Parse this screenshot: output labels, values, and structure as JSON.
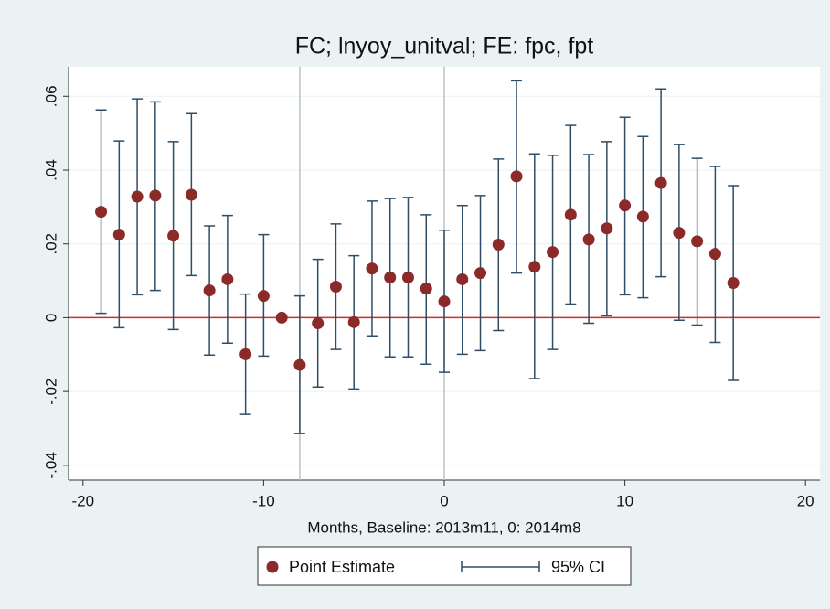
{
  "chart_data": {
    "type": "errorbar",
    "title": "FC; lnyoy_unitval; FE: fpc, fpt",
    "x_label": "Months, Baseline: 2013m11, 0: 2014m8",
    "x": [
      -19,
      -18,
      -17,
      -16,
      -15,
      -14,
      -13,
      -12,
      -11,
      -10,
      -9,
      -8,
      -7,
      -6,
      -5,
      -4,
      -3,
      -2,
      -1,
      0,
      1,
      2,
      3,
      4,
      5,
      6,
      7,
      8,
      9,
      10,
      11,
      12,
      13,
      14,
      15,
      16
    ],
    "series": [
      {
        "name": "Point Estimate",
        "color": "#8c2a2a",
        "values": [
          0.0287,
          0.0225,
          0.0328,
          0.0331,
          0.0222,
          0.0333,
          0.0074,
          0.0104,
          -0.0099,
          0.0059,
          0,
          -0.0128,
          -0.0015,
          0.0084,
          -0.0012,
          0.0133,
          0.0109,
          0.0109,
          0.0079,
          0.0044,
          0.0104,
          0.0121,
          0.0198,
          0.0383,
          0.0138,
          0.0178,
          0.0279,
          0.0212,
          0.0242,
          0.0304,
          0.0274,
          0.0365,
          0.023,
          0.0207,
          0.0173,
          0.0094
        ]
      }
    ],
    "ci": {
      "name": "95% CI",
      "color": "#2f4d66",
      "lower": [
        0.0012,
        -0.0027,
        0.0062,
        0.0074,
        -0.0032,
        0.0114,
        -0.0101,
        -0.0069,
        -0.0262,
        -0.0104,
        null,
        -0.0314,
        -0.0188,
        -0.0086,
        -0.0193,
        -0.0049,
        -0.0106,
        -0.0106,
        -0.0126,
        -0.0148,
        -0.0099,
        -0.0089,
        -0.0035,
        0.0121,
        -0.0165,
        -0.0086,
        0.0037,
        -0.0015,
        0.0005,
        0.0062,
        0.0054,
        0.0111,
        -0.0007,
        -0.002,
        -0.0067,
        -0.017
      ],
      "upper": [
        0.0563,
        0.0479,
        0.0593,
        0.0585,
        0.0477,
        0.0553,
        0.0249,
        0.0277,
        0.0064,
        0.0225,
        null,
        0.0059,
        0.0158,
        0.0254,
        0.0168,
        0.0316,
        0.0323,
        0.0326,
        0.0279,
        0.0237,
        0.0304,
        0.0331,
        0.043,
        0.0642,
        0.0444,
        0.044,
        0.0521,
        0.0442,
        0.0477,
        0.0543,
        0.0491,
        0.062,
        0.0469,
        0.0432,
        0.041,
        0.0358
      ]
    },
    "xlim": [
      -20.8,
      20.8
    ],
    "xticks": [
      -20,
      -10,
      0,
      10,
      20
    ],
    "ylim": [
      -0.044,
      0.068
    ],
    "yticks": [
      {
        "value": -0.04,
        "label": "-.04"
      },
      {
        "value": -0.02,
        "label": "-.02"
      },
      0,
      {
        "value": 0.02,
        "label": ".02"
      },
      {
        "value": 0.04,
        "label": ".04"
      },
      {
        "value": 0.06,
        "label": ".06"
      }
    ],
    "grid": true,
    "xlines": [
      -8,
      0
    ],
    "xline_color": "#b8c4c8",
    "yline": 0,
    "yline_color": "#d42a2a"
  }
}
